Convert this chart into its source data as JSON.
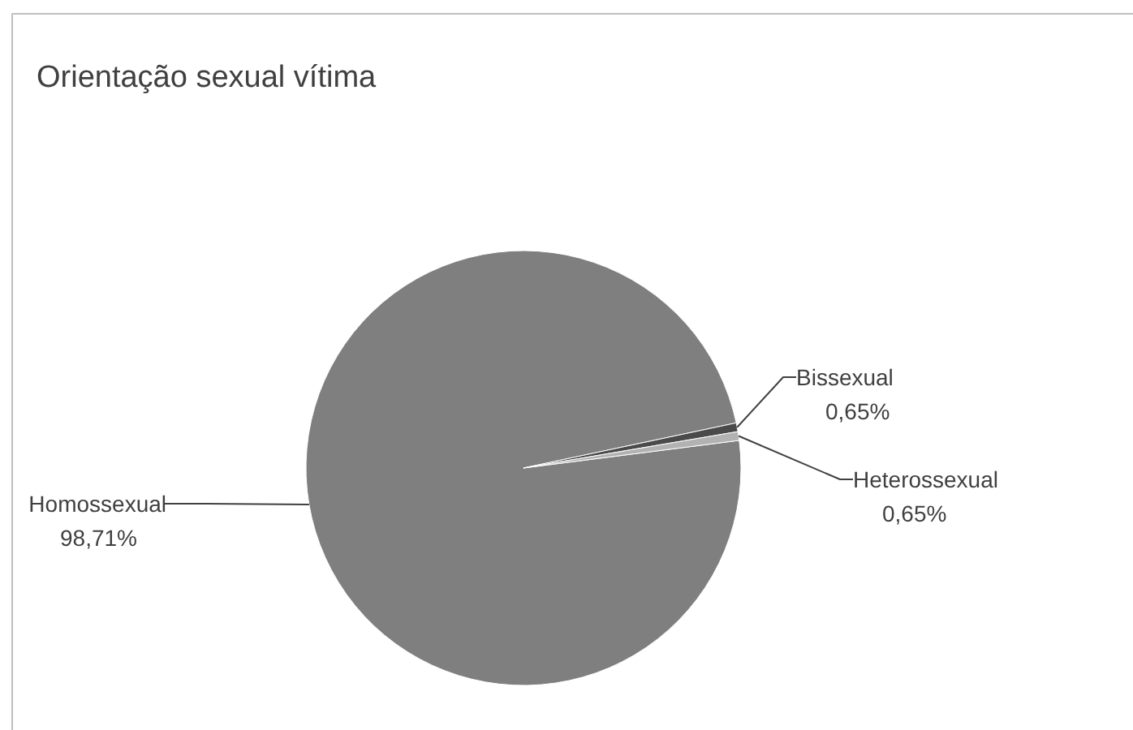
{
  "chart_data": {
    "type": "pie",
    "title": "Orientação sexual vítima",
    "categories": [
      "Homossexual",
      "Bissexual",
      "Heterossexual"
    ],
    "values": [
      98.71,
      0.65,
      0.65
    ],
    "colors": [
      "#7f7f7f",
      "#4a4a4a",
      "#b2b2b2"
    ],
    "value_labels": [
      "98,71%",
      "0,65%",
      "0,65%"
    ]
  }
}
